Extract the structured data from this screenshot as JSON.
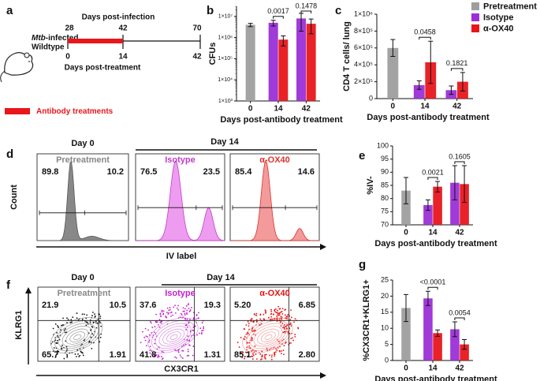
{
  "panel_labels": [
    "a",
    "b",
    "c",
    "d",
    "e",
    "f",
    "g"
  ],
  "timeline": {
    "mouse_label_italic": "Mtb",
    "mouse_label_rest": "-infected",
    "mouse_label_line2": "Wildtype",
    "infection_label": "Days post-infection",
    "infection_days": [
      "28",
      "42",
      "70"
    ],
    "treatment_days": [
      "0",
      "14",
      "42"
    ],
    "treatment_label": "Days post-treatment",
    "legend_label": "Antibody treatments"
  },
  "histogram_panel": {
    "day0": "Day 0",
    "day14": "Day 14",
    "y_label": "Count",
    "x_label": "IV label",
    "plots": [
      {
        "name": "Pretreatment",
        "left": "89.8",
        "right": "10.2"
      },
      {
        "name": "Isotype",
        "left": "76.5",
        "right": "23.5"
      },
      {
        "name": "α-OX40",
        "left": "85.4",
        "right": "14.6"
      }
    ]
  },
  "contour_panel": {
    "day0": "Day 0",
    "day14": "Day 14",
    "y_label": "KLRG1",
    "x_label": "CX3CR1",
    "plots": [
      {
        "name": "Pretreatment",
        "quadrants": [
          "21.9",
          "10.5",
          "65.7",
          "1.91"
        ]
      },
      {
        "name": "Isotype",
        "quadrants": [
          "37.6",
          "19.3",
          "41.8",
          "1.31"
        ]
      },
      {
        "name": "α-OX40",
        "quadrants": [
          "5.20",
          "6.85",
          "85.1",
          "2.80"
        ]
      }
    ]
  },
  "chart_data": [
    {
      "type": "bar",
      "log": true,
      "y_label": "CFUs",
      "x_label": "Days post-antibody treatment",
      "categories": [
        "0",
        "14",
        "42"
      ],
      "ylim": [
        1000,
        30000000
      ],
      "yticks": [
        {
          "value": 1000,
          "label": "1×10³"
        },
        {
          "value": 10000,
          "label": "1×10⁴"
        },
        {
          "value": 100000,
          "label": "1×10⁵"
        },
        {
          "value": 1000000,
          "label": "1×10⁶"
        },
        {
          "value": 10000000,
          "label": "1×10⁷"
        }
      ],
      "series": [
        {
          "name": "Pretreatment",
          "color": "#9e9e9e",
          "values": [
            4000000,
            null,
            null
          ],
          "errors": [
            700000,
            null,
            null
          ]
        },
        {
          "name": "Isotype",
          "color": "#9b2fd6",
          "values": [
            null,
            5000000,
            8000000
          ],
          "errors": [
            null,
            1500000,
            6000000
          ]
        },
        {
          "name": "α-OX40",
          "color": "#e8161b",
          "values": [
            null,
            800000,
            4500000
          ],
          "errors": [
            null,
            400000,
            3000000
          ]
        }
      ],
      "annotations": [
        {
          "text": "0.0017",
          "category": "14"
        },
        {
          "text": "0.1478",
          "category": "42"
        }
      ]
    },
    {
      "type": "bar",
      "y_label": "CD4 T cells/ lung",
      "x_label": "Days post-antibody treatment",
      "categories": [
        "0",
        "14",
        "42"
      ],
      "ylim": [
        0,
        1000000
      ],
      "yticks": [
        0,
        {
          "value": 200000,
          "label": "2×10⁵"
        },
        {
          "value": 400000,
          "label": "4×10⁵"
        },
        {
          "value": 600000,
          "label": "6×10⁵"
        },
        {
          "value": 800000,
          "label": "8×10⁵"
        },
        {
          "value": 1000000,
          "label": "1×10⁶"
        }
      ],
      "series": [
        {
          "name": "Pretreatment",
          "color": "#9e9e9e",
          "values": [
            600000,
            null,
            null
          ],
          "errors": [
            100000,
            null,
            null
          ]
        },
        {
          "name": "Isotype",
          "color": "#9b2fd6",
          "values": [
            null,
            160000,
            100000
          ],
          "errors": [
            null,
            50000,
            50000
          ]
        },
        {
          "name": "α-OX40",
          "color": "#e8161b",
          "values": [
            null,
            430000,
            200000
          ],
          "errors": [
            null,
            250000,
            110000
          ]
        }
      ],
      "annotations": [
        {
          "text": "0.0458",
          "category": "14"
        },
        {
          "text": "0.1821",
          "category": "42"
        }
      ]
    },
    {
      "type": "bar",
      "y_label": "%IV-",
      "x_label": "Days post-antibody treatment",
      "categories": [
        "0",
        "14",
        "42"
      ],
      "ylim": [
        70,
        100
      ],
      "yticks": [
        70,
        75,
        80,
        85,
        90,
        95,
        100
      ],
      "series": [
        {
          "name": "Pretreatment",
          "color": "#9e9e9e",
          "values": [
            83,
            null,
            null
          ],
          "errors": [
            5,
            null,
            null
          ]
        },
        {
          "name": "Isotype",
          "color": "#9b2fd6",
          "values": [
            null,
            77.5,
            86
          ],
          "errors": [
            null,
            2,
            6.5
          ]
        },
        {
          "name": "α-OX40",
          "color": "#e8161b",
          "values": [
            null,
            84.5,
            85.5
          ],
          "errors": [
            null,
            2,
            7
          ]
        }
      ],
      "annotations": [
        {
          "text": "0.0021",
          "category": "14"
        },
        {
          "text": "0.1605",
          "category": "42"
        }
      ]
    },
    {
      "type": "bar",
      "y_label": "%CX3CR1+KLRG1+",
      "x_label": "Days post-antibody treatment",
      "categories": [
        "0",
        "14",
        "42"
      ],
      "ylim": [
        0,
        25
      ],
      "yticks": [
        0,
        5,
        10,
        15,
        20,
        25
      ],
      "series": [
        {
          "name": "Pretreatment",
          "color": "#9e9e9e",
          "values": [
            16.3,
            null,
            null
          ],
          "errors": [
            4.2,
            null,
            null
          ]
        },
        {
          "name": "Isotype",
          "color": "#9b2fd6",
          "values": [
            null,
            19.3,
            9.7
          ],
          "errors": [
            null,
            2.2,
            2.3
          ]
        },
        {
          "name": "α-OX40",
          "color": "#e8161b",
          "values": [
            null,
            8.5,
            5
          ],
          "errors": [
            null,
            1,
            1.5
          ]
        }
      ],
      "annotations": [
        {
          "text": "<0.0001",
          "category": "14"
        },
        {
          "text": "0.0054",
          "category": "42"
        }
      ]
    }
  ]
}
